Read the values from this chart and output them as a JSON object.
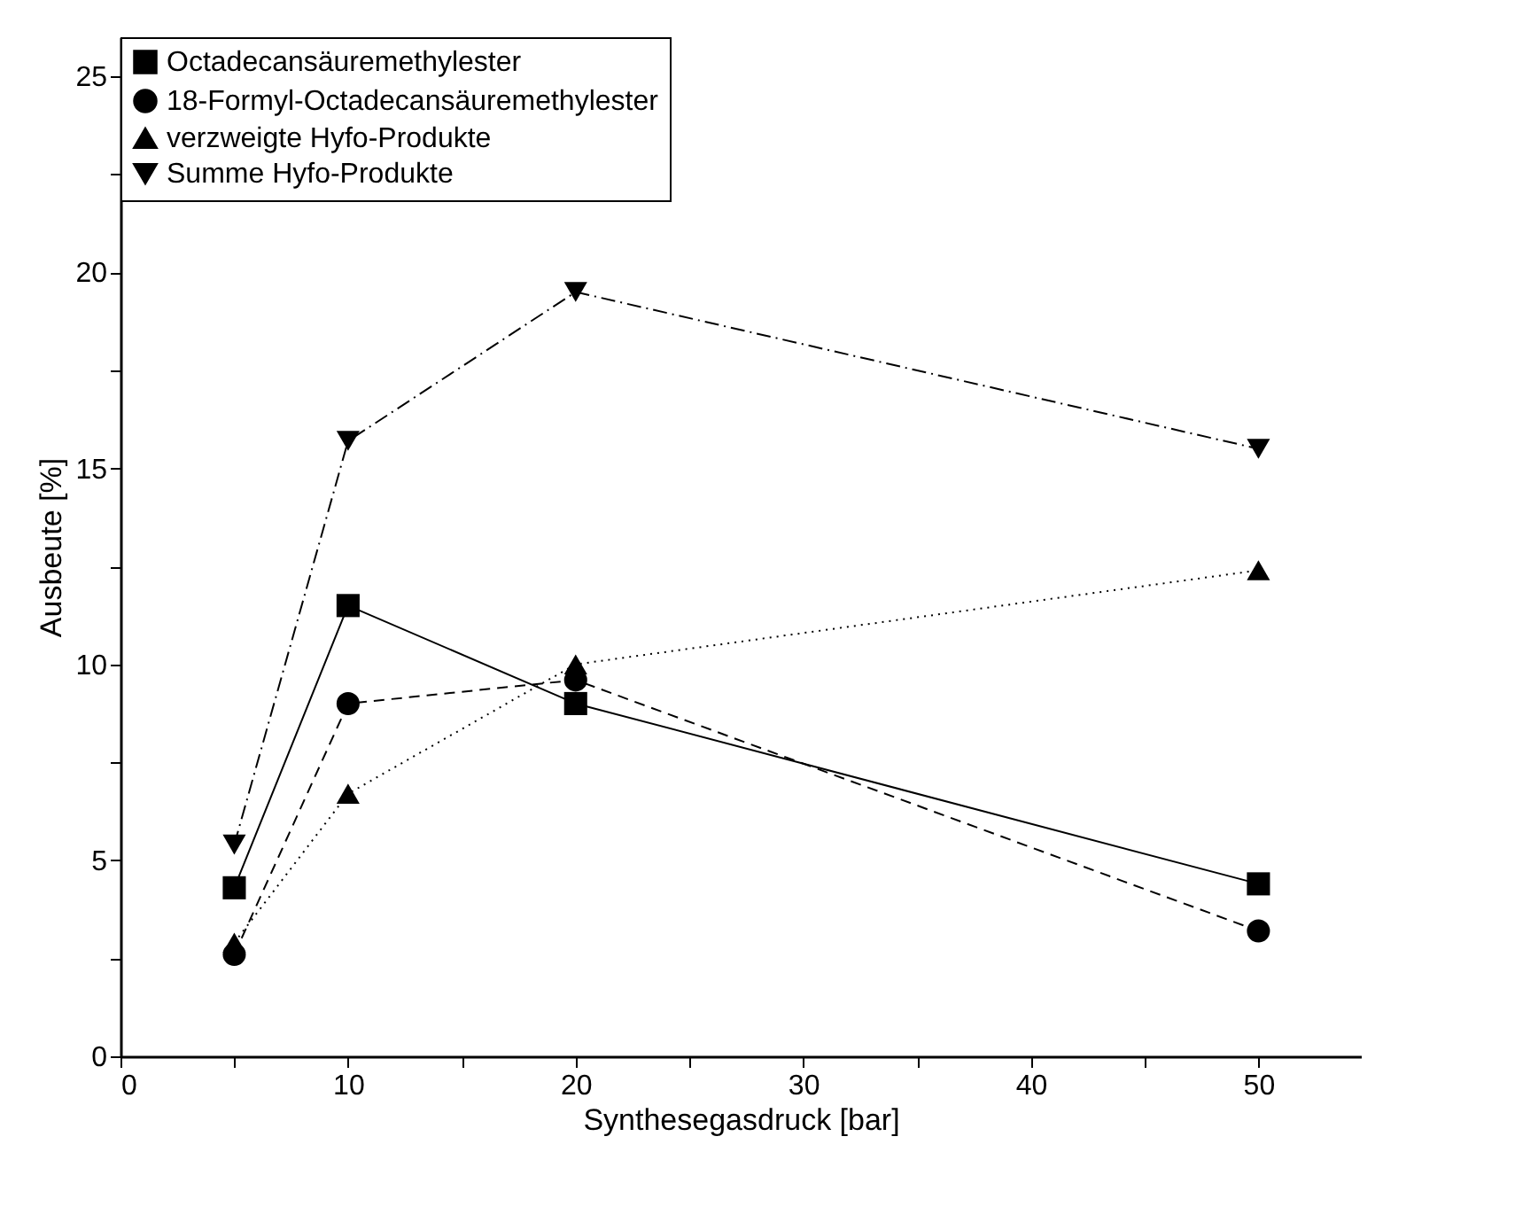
{
  "chart_data": {
    "type": "line",
    "xlabel": "Synthesegasdruck [bar]",
    "ylabel": "Ausbeute [%]",
    "x": [
      5,
      10,
      20,
      50
    ],
    "series": [
      {
        "name": "Octadecansäuremethylester",
        "color": "#000000",
        "marker": "square",
        "line_style": "solid",
        "values": [
          4.3,
          11.5,
          9.0,
          4.4
        ]
      },
      {
        "name": "18-Formyl-Octadecansäuremethylester",
        "color": "#000000",
        "marker": "circle",
        "line_style": "dashed",
        "values": [
          2.6,
          9.0,
          9.6,
          3.2
        ]
      },
      {
        "name": "verzweigte Hyfo-Produkte",
        "color": "#000000",
        "marker": "triangle",
        "line_style": "dotted",
        "values": [
          2.9,
          6.7,
          10.0,
          12.4
        ]
      },
      {
        "name": "Summe Hyfo-Produkte",
        "color": "#000000",
        "marker": "triangle-down",
        "line_style": "dashdot",
        "values": [
          5.4,
          15.7,
          19.5,
          15.5
        ]
      }
    ],
    "xlim": [
      0,
      54.5
    ],
    "ylim": [
      0,
      26
    ],
    "xticks": [
      0,
      {
        "value": 5,
        "label": null
      },
      10,
      {
        "value": 15,
        "label": null
      },
      20,
      {
        "value": 25,
        "label": null
      },
      30,
      {
        "value": 35,
        "label": null
      },
      40,
      {
        "value": 45,
        "label": null
      },
      50
    ],
    "yticks": [
      0,
      {
        "value": 2.5,
        "label": null
      },
      5,
      {
        "value": 7.5,
        "label": null
      },
      10,
      {
        "value": 12.5,
        "label": null
      },
      15,
      {
        "value": 17.5,
        "label": null
      },
      20,
      {
        "value": 22.5,
        "label": null
      },
      25
    ],
    "grid": false,
    "legend": "top left"
  }
}
